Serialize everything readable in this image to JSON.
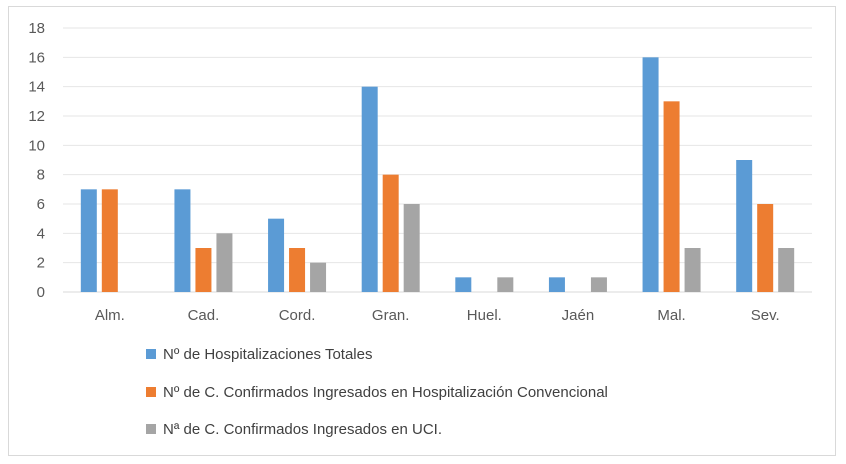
{
  "chart_data": {
    "type": "bar",
    "categories": [
      "Alm.",
      "Cad.",
      "Cord.",
      "Gran.",
      "Huel.",
      "Jaén",
      "Mal.",
      "Sev."
    ],
    "series": [
      {
        "name": "Nº de Hospitalizaciones Totales",
        "color": "#5b9bd5",
        "values": [
          7,
          7,
          5,
          14,
          1,
          1,
          16,
          9
        ]
      },
      {
        "name": "Nº de C. Confirmados Ingresados en Hospitalización Convencional",
        "color": "#ed7d31",
        "values": [
          7,
          3,
          3,
          8,
          0,
          0,
          13,
          6
        ]
      },
      {
        "name": "Nª de C. Confirmados Ingresados en UCI.",
        "color": "#a5a5a5",
        "values": [
          0,
          4,
          2,
          6,
          1,
          1,
          3,
          3
        ]
      }
    ],
    "ylim": [
      0,
      18
    ],
    "yticks": [
      0,
      2,
      4,
      6,
      8,
      10,
      12,
      14,
      16,
      18
    ],
    "grid": true,
    "legend_position": "bottom"
  }
}
